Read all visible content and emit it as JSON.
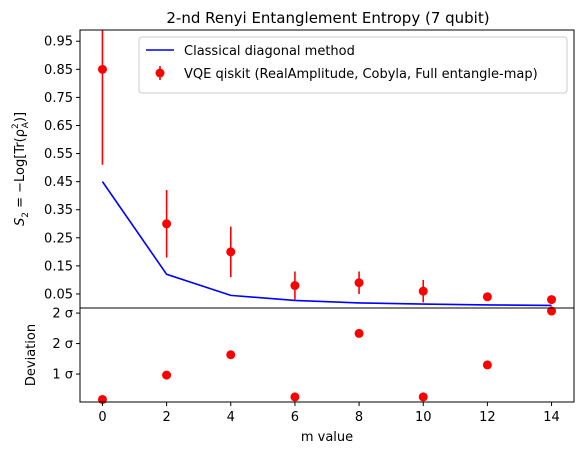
{
  "chart_data": [
    {
      "type": "line",
      "title": "2-nd Renyi Entanglement Entropy (7 qubit)",
      "ylabel_parts": {
        "s": "S",
        "sub": "2",
        "rest": " = −Log[Tr(ρ",
        "sup": "2",
        "sub2": "A",
        "end": ")]"
      },
      "xlim": [
        -0.7,
        14.7
      ],
      "ylim": [
        0.0,
        0.99
      ],
      "x_ticks": [
        0,
        2,
        4,
        6,
        8,
        10,
        12,
        14
      ],
      "y_ticks": [
        0.05,
        0.15,
        0.25,
        0.35,
        0.45,
        0.55,
        0.65,
        0.75,
        0.85,
        0.95
      ],
      "y_tick_labels": [
        "0.05",
        "0.15",
        "0.25",
        "0.35",
        "0.45",
        "0.55",
        "0.65",
        "0.75",
        "0.85",
        "0.95"
      ],
      "legend_position": "top-right",
      "series": [
        {
          "name": "Classical diagonal method",
          "kind": "line",
          "color": "#0000ff",
          "x": [
            0,
            2,
            4,
            6,
            8,
            10,
            12,
            14
          ],
          "y": [
            0.45,
            0.12,
            0.045,
            0.027,
            0.018,
            0.014,
            0.011,
            0.009
          ]
        },
        {
          "name": "VQE qiskit (RealAmplitude, Cobyla, Full entangle-map)",
          "kind": "errorbar",
          "color": "#ff0000",
          "x": [
            0,
            2,
            4,
            6,
            8,
            10,
            12,
            14
          ],
          "y": [
            0.85,
            0.3,
            0.2,
            0.08,
            0.09,
            0.06,
            0.04,
            0.03
          ],
          "err": [
            0.34,
            0.12,
            0.09,
            0.05,
            0.04,
            0.04,
            0.015,
            0.01
          ]
        }
      ]
    },
    {
      "type": "scatter",
      "ylabel": "Deviation",
      "xlabel": "m value",
      "xlim": [
        -0.7,
        14.7
      ],
      "ylim": [
        0.45,
        2.3
      ],
      "x_ticks": [
        0,
        2,
        4,
        6,
        8,
        10,
        12,
        14
      ],
      "x_tick_labels": [
        "0",
        "2",
        "4",
        "6",
        "8",
        "10",
        "12",
        "14"
      ],
      "y_ticks": [
        1.0,
        1.6,
        2.2
      ],
      "y_tick_labels": [
        "1 σ",
        "2 σ",
        "2 σ"
      ],
      "series": [
        {
          "color": "#ff0000",
          "x": [
            0,
            2,
            4,
            6,
            8,
            10,
            12,
            14
          ],
          "y": [
            0.5,
            0.98,
            1.38,
            0.55,
            1.8,
            0.55,
            1.18,
            2.24
          ]
        }
      ]
    }
  ]
}
